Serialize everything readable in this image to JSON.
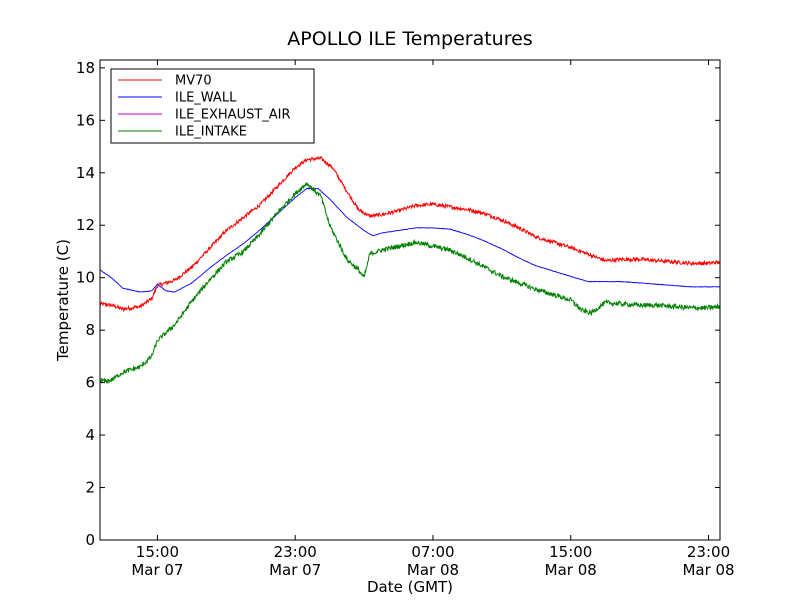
{
  "chart_data": {
    "type": "line",
    "title": "APOLLO ILE Temperatures",
    "xlabel": "Date (GMT)",
    "ylabel": "Temperature (C)",
    "ylim": [
      0,
      18.3
    ],
    "xlim": [
      "2013-03-07 11:40",
      "2013-03-08 23:40"
    ],
    "x_ticks": [
      {
        "time": "2013-03-07 15:00",
        "line1": "15:00",
        "line2": "Mar 07"
      },
      {
        "time": "2013-03-07 23:00",
        "line1": "23:00",
        "line2": "Mar 07"
      },
      {
        "time": "2013-03-08 07:00",
        "line1": "07:00",
        "line2": "Mar 08"
      },
      {
        "time": "2013-03-08 15:00",
        "line1": "15:00",
        "line2": "Mar 08"
      },
      {
        "time": "2013-03-08 23:00",
        "line1": "23:00",
        "line2": "Mar 08"
      }
    ],
    "y_ticks": [
      0,
      2,
      4,
      6,
      8,
      10,
      12,
      14,
      16,
      18
    ],
    "grid": false,
    "legend": {
      "position": "top-left",
      "entries": [
        {
          "name": "MV70",
          "color": "#ff0000"
        },
        {
          "name": "ILE_WALL",
          "color": "#0000ff"
        },
        {
          "name": "ILE_EXHAUST_AIR",
          "color": "#bf00bf"
        },
        {
          "name": "ILE_INTAKE",
          "color": "#008000"
        }
      ]
    },
    "series": [
      {
        "name": "MV70",
        "color": "#ff0000",
        "noise": 0.07,
        "points": [
          [
            "2013-03-07 11:40",
            9.0
          ],
          [
            "2013-03-07 12:20",
            8.95
          ],
          [
            "2013-03-07 13:00",
            8.8
          ],
          [
            "2013-03-07 14:00",
            8.9
          ],
          [
            "2013-03-07 14:40",
            9.2
          ],
          [
            "2013-03-07 15:00",
            9.7
          ],
          [
            "2013-03-07 16:00",
            9.9
          ],
          [
            "2013-03-07 17:00",
            10.4
          ],
          [
            "2013-03-07 18:00",
            11.1
          ],
          [
            "2013-03-07 19:00",
            11.8
          ],
          [
            "2013-03-07 20:00",
            12.3
          ],
          [
            "2013-03-07 21:00",
            12.8
          ],
          [
            "2013-03-07 22:00",
            13.5
          ],
          [
            "2013-03-07 23:00",
            14.2
          ],
          [
            "2013-03-07 23:40",
            14.5
          ],
          [
            "2013-03-08 00:30",
            14.55
          ],
          [
            "2013-03-08 01:10",
            14.2
          ],
          [
            "2013-03-08 02:00",
            13.3
          ],
          [
            "2013-03-08 02:40",
            12.6
          ],
          [
            "2013-03-08 03:20",
            12.35
          ],
          [
            "2013-03-08 04:00",
            12.4
          ],
          [
            "2013-03-08 05:00",
            12.55
          ],
          [
            "2013-03-08 06:00",
            12.75
          ],
          [
            "2013-03-08 07:00",
            12.8
          ],
          [
            "2013-03-08 08:00",
            12.7
          ],
          [
            "2013-03-08 09:00",
            12.6
          ],
          [
            "2013-03-08 10:00",
            12.45
          ],
          [
            "2013-03-08 11:00",
            12.2
          ],
          [
            "2013-03-08 12:00",
            11.9
          ],
          [
            "2013-03-08 13:00",
            11.55
          ],
          [
            "2013-03-08 14:00",
            11.35
          ],
          [
            "2013-03-08 15:00",
            11.15
          ],
          [
            "2013-03-08 16:00",
            10.9
          ],
          [
            "2013-03-08 17:00",
            10.65
          ],
          [
            "2013-03-08 18:00",
            10.7
          ],
          [
            "2013-03-08 19:00",
            10.7
          ],
          [
            "2013-03-08 20:00",
            10.65
          ],
          [
            "2013-03-08 21:00",
            10.6
          ],
          [
            "2013-03-08 22:00",
            10.55
          ],
          [
            "2013-03-08 23:00",
            10.55
          ],
          [
            "2013-03-08 23:40",
            10.6
          ]
        ]
      },
      {
        "name": "ILE_WALL",
        "color": "#0000ff",
        "noise": 0.01,
        "points": [
          [
            "2013-03-07 11:40",
            10.3
          ],
          [
            "2013-03-07 12:20",
            10.0
          ],
          [
            "2013-03-07 13:00",
            9.6
          ],
          [
            "2013-03-07 14:00",
            9.45
          ],
          [
            "2013-03-07 14:40",
            9.5
          ],
          [
            "2013-03-07 15:00",
            9.75
          ],
          [
            "2013-03-07 15:30",
            9.5
          ],
          [
            "2013-03-07 16:00",
            9.45
          ],
          [
            "2013-03-07 17:00",
            9.8
          ],
          [
            "2013-03-07 18:00",
            10.35
          ],
          [
            "2013-03-07 19:00",
            10.85
          ],
          [
            "2013-03-07 20:00",
            11.3
          ],
          [
            "2013-03-07 21:00",
            11.85
          ],
          [
            "2013-03-07 22:00",
            12.45
          ],
          [
            "2013-03-07 23:00",
            13.05
          ],
          [
            "2013-03-07 23:40",
            13.4
          ],
          [
            "2013-03-08 00:20",
            13.4
          ],
          [
            "2013-03-08 01:00",
            13.0
          ],
          [
            "2013-03-08 02:00",
            12.3
          ],
          [
            "2013-03-08 03:00",
            11.8
          ],
          [
            "2013-03-08 03:30",
            11.6
          ],
          [
            "2013-03-08 04:00",
            11.7
          ],
          [
            "2013-03-08 05:00",
            11.8
          ],
          [
            "2013-03-08 06:00",
            11.9
          ],
          [
            "2013-03-08 07:00",
            11.9
          ],
          [
            "2013-03-08 08:00",
            11.85
          ],
          [
            "2013-03-08 09:00",
            11.65
          ],
          [
            "2013-03-08 10:00",
            11.4
          ],
          [
            "2013-03-08 11:00",
            11.1
          ],
          [
            "2013-03-08 12:00",
            10.75
          ],
          [
            "2013-03-08 13:00",
            10.45
          ],
          [
            "2013-03-08 14:00",
            10.25
          ],
          [
            "2013-03-08 15:00",
            10.05
          ],
          [
            "2013-03-08 16:00",
            9.85
          ],
          [
            "2013-03-08 17:00",
            9.85
          ],
          [
            "2013-03-08 18:00",
            9.85
          ],
          [
            "2013-03-08 19:00",
            9.8
          ],
          [
            "2013-03-08 20:00",
            9.75
          ],
          [
            "2013-03-08 21:00",
            9.7
          ],
          [
            "2013-03-08 22:00",
            9.65
          ],
          [
            "2013-03-08 23:00",
            9.65
          ],
          [
            "2013-03-08 23:40",
            9.65
          ]
        ]
      },
      {
        "name": "ILE_INTAKE",
        "color": "#008000",
        "noise": 0.09,
        "points": [
          [
            "2013-03-07 11:40",
            6.1
          ],
          [
            "2013-03-07 12:00",
            6.05
          ],
          [
            "2013-03-07 12:20",
            6.1
          ],
          [
            "2013-03-07 13:00",
            6.4
          ],
          [
            "2013-03-07 14:00",
            6.6
          ],
          [
            "2013-03-07 14:40",
            7.0
          ],
          [
            "2013-03-07 15:00",
            7.6
          ],
          [
            "2013-03-07 16:00",
            8.2
          ],
          [
            "2013-03-07 17:00",
            9.1
          ],
          [
            "2013-03-07 18:00",
            9.9
          ],
          [
            "2013-03-07 19:00",
            10.6
          ],
          [
            "2013-03-07 20:00",
            11.0
          ],
          [
            "2013-03-07 21:00",
            11.7
          ],
          [
            "2013-03-07 22:00",
            12.5
          ],
          [
            "2013-03-07 23:00",
            13.2
          ],
          [
            "2013-03-07 23:40",
            13.6
          ],
          [
            "2013-03-08 00:30",
            13.1
          ],
          [
            "2013-03-08 01:00",
            12.0
          ],
          [
            "2013-03-08 02:00",
            10.7
          ],
          [
            "2013-03-08 02:40",
            10.3
          ],
          [
            "2013-03-08 03:00",
            10.0
          ],
          [
            "2013-03-08 03:20",
            10.9
          ],
          [
            "2013-03-08 04:00",
            11.05
          ],
          [
            "2013-03-08 05:00",
            11.2
          ],
          [
            "2013-03-08 06:00",
            11.35
          ],
          [
            "2013-03-08 07:00",
            11.2
          ],
          [
            "2013-03-08 08:00",
            11.05
          ],
          [
            "2013-03-08 09:00",
            10.75
          ],
          [
            "2013-03-08 10:00",
            10.4
          ],
          [
            "2013-03-08 11:00",
            10.05
          ],
          [
            "2013-03-08 12:00",
            9.8
          ],
          [
            "2013-03-08 13:00",
            9.55
          ],
          [
            "2013-03-08 14:00",
            9.35
          ],
          [
            "2013-03-08 15:00",
            9.15
          ],
          [
            "2013-03-08 15:40",
            8.75
          ],
          [
            "2013-03-08 16:10",
            8.65
          ],
          [
            "2013-03-08 17:00",
            9.05
          ],
          [
            "2013-03-08 18:00",
            9.0
          ],
          [
            "2013-03-08 19:00",
            8.95
          ],
          [
            "2013-03-08 20:00",
            8.95
          ],
          [
            "2013-03-08 21:00",
            8.9
          ],
          [
            "2013-03-08 22:00",
            8.85
          ],
          [
            "2013-03-08 23:00",
            8.85
          ],
          [
            "2013-03-08 23:40",
            8.9
          ]
        ]
      },
      {
        "name": "ILE_EXHAUST_AIR",
        "color": "#bf00bf",
        "noise": 0,
        "points": []
      }
    ]
  }
}
